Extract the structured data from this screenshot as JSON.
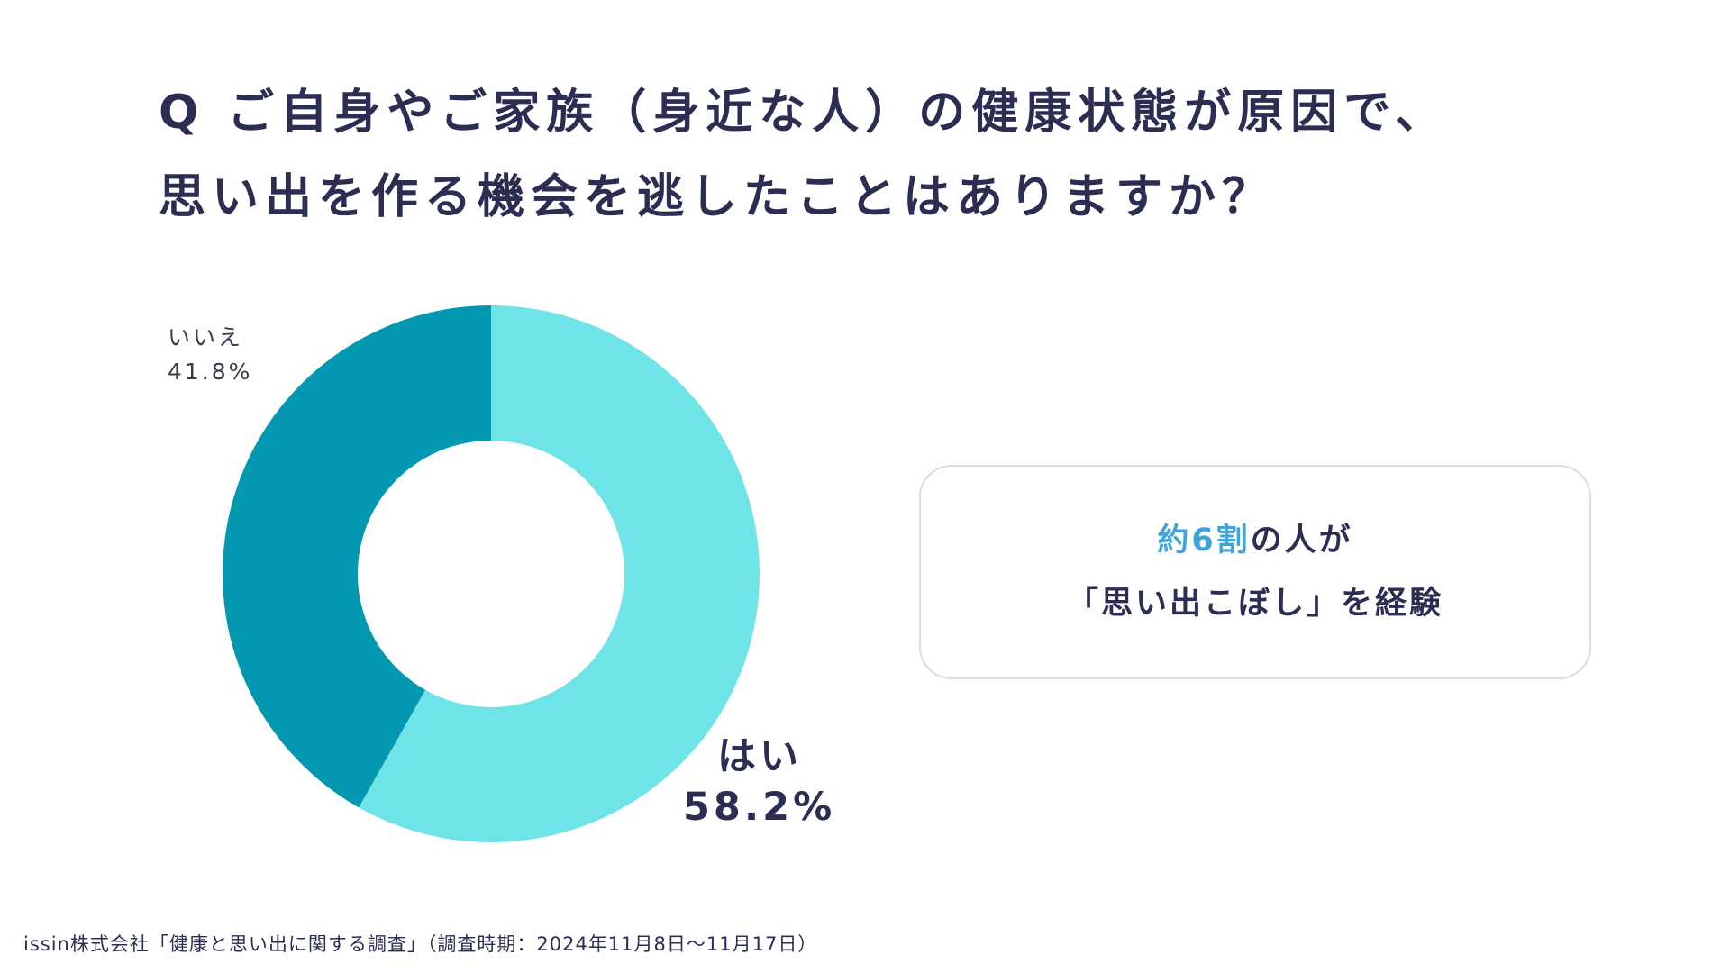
{
  "title": {
    "line1": "Q ご自身やご家族（身近な人）の健康状態が原因で、",
    "line2": "思い出を作る機会を逃したことはありますか？"
  },
  "colors": {
    "yes": "#6ee3e8",
    "no": "#0298b2",
    "accent": "#3ea5dc",
    "text": "#2b2d52"
  },
  "chart_data": {
    "type": "pie",
    "donut": true,
    "categories": [
      "はい",
      "いいえ"
    ],
    "values": [
      58.2,
      41.8
    ],
    "value_labels": [
      "58.2%",
      "41.8%"
    ],
    "title": "Q ご自身やご家族（身近な人）の健康状態が原因で、思い出を作る機会を逃したことはありますか？"
  },
  "labels": {
    "no_name": "いいえ",
    "no_value": "41.8%",
    "yes_name": "はい",
    "yes_value": "58.2%"
  },
  "callout": {
    "accent": "約6割",
    "line1_rest": "の人が",
    "line2": "「思い出こぼし」を経験"
  },
  "source": "issin株式会社「健康と思い出に関する調査」（調査時期：2024年11月8日〜11月17日）"
}
